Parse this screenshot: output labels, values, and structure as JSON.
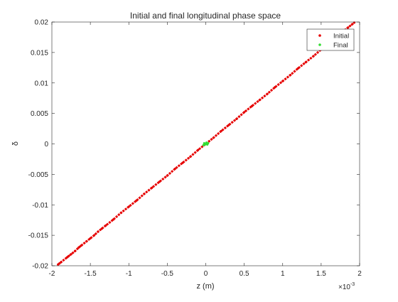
{
  "chart_data": {
    "type": "scatter",
    "title": "Initial and final longitudinal phase space",
    "xlabel": "z (m)",
    "ylabel": "δ",
    "x_multiplier": "×10",
    "x_exponent": "-3",
    "xlim": [
      -2,
      2
    ],
    "ylim": [
      -0.02,
      0.02
    ],
    "x_unit_scale": 0.001,
    "x_ticks": [
      -2,
      -1.5,
      -1,
      -0.5,
      0,
      0.5,
      1,
      1.5,
      2
    ],
    "x_tick_labels": [
      "-2",
      "-1.5",
      "-1",
      "-0.5",
      "0",
      "0.5",
      "1",
      "1.5",
      "2"
    ],
    "y_ticks": [
      -0.02,
      -0.015,
      -0.01,
      -0.005,
      0,
      0.005,
      0.01,
      0.015,
      0.02
    ],
    "y_tick_labels": [
      "-0.02",
      "-0.015",
      "-0.01",
      "-0.005",
      "0",
      "0.005",
      "0.01",
      "0.015",
      "0.02"
    ],
    "grid": false,
    "legend_position": "top-right",
    "series": [
      {
        "name": "Initial",
        "color": "#e60000",
        "marker": "dot",
        "x": [
          -1.92,
          -1.9,
          -1.88,
          -1.8,
          -1.78,
          -1.75,
          -1.7,
          -1.65,
          -1.62,
          -1.55,
          -1.5,
          -1.45,
          -1.4,
          -1.35,
          -1.3,
          -1.2,
          -1.1,
          -1.0,
          -0.9,
          -0.8,
          -0.7,
          -0.6,
          -0.5,
          -0.4,
          -0.3,
          -0.2,
          -0.1,
          0.0,
          0.1,
          0.2,
          0.3,
          0.4,
          0.5,
          0.6,
          0.7,
          0.8,
          0.9,
          1.0,
          1.1,
          1.2,
          1.3,
          1.4,
          1.5,
          1.6,
          1.7,
          1.8,
          1.85,
          1.9,
          1.93
        ],
        "y": [
          -0.0198,
          -0.0196,
          -0.0194,
          -0.0186,
          -0.0184,
          -0.0181,
          -0.0176,
          -0.017,
          -0.0167,
          -0.016,
          -0.0155,
          -0.015,
          -0.0144,
          -0.0139,
          -0.0134,
          -0.0124,
          -0.0113,
          -0.0103,
          -0.0093,
          -0.0082,
          -0.0072,
          -0.0062,
          -0.0052,
          -0.0041,
          -0.0031,
          -0.0021,
          -0.001,
          0.0,
          0.001,
          0.0021,
          0.0031,
          0.0041,
          0.0052,
          0.0062,
          0.0072,
          0.0082,
          0.0093,
          0.0103,
          0.0113,
          0.0124,
          0.0134,
          0.0144,
          0.0155,
          0.0165,
          0.0175,
          0.0186,
          0.0191,
          0.0196,
          0.0199
        ]
      },
      {
        "name": "Final",
        "color": "#33dd33",
        "marker": "dot",
        "x": [
          -0.03,
          -0.02,
          -0.01,
          0.0,
          0.01,
          0.02,
          0.03
        ],
        "y": [
          -0.0002,
          0.0001,
          -0.0001,
          0.0,
          0.0002,
          -0.0001,
          0.0001
        ]
      }
    ]
  }
}
